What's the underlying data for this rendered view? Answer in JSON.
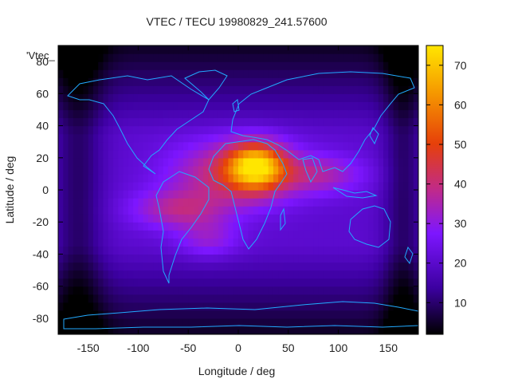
{
  "chart_data": {
    "type": "heatmap",
    "title": "VTEC / TECU 19980829_241.57600",
    "xlabel": "Longitude / deg",
    "ylabel": "Latitude / deg",
    "plot_key": "'Vtec_",
    "xlim": [
      -180,
      180
    ],
    "ylim": [
      -90,
      90
    ],
    "x_ticks": [
      -150,
      -100,
      -50,
      0,
      50,
      100,
      150
    ],
    "y_ticks": [
      -80,
      -60,
      -40,
      -20,
      0,
      20,
      40,
      60,
      80
    ],
    "colorbar": {
      "range": [
        2,
        75
      ],
      "ticks": [
        10,
        20,
        30,
        40,
        50,
        60,
        70
      ],
      "palette": [
        "#000000",
        "#3c00a0",
        "#7d16ff",
        "#c02a8a",
        "#e6400a",
        "#f69a00",
        "#ffe600"
      ]
    },
    "grid": false,
    "coastline_color": "#22aaff",
    "peak": {
      "lon": 18,
      "lat": 15,
      "value": 75
    },
    "features": [
      {
        "lon": 18,
        "lat": 15,
        "amp": 42,
        "sx": 28,
        "sy": 14
      },
      {
        "lon": -5,
        "lat": 10,
        "amp": 22,
        "sx": 60,
        "sy": 20
      },
      {
        "lon": -60,
        "lat": -12,
        "amp": 16,
        "sx": 45,
        "sy": 12
      },
      {
        "lon": 80,
        "lat": 10,
        "amp": 14,
        "sx": 45,
        "sy": 12
      },
      {
        "lon": -30,
        "lat": -30,
        "amp": 10,
        "sx": 30,
        "sy": 12
      }
    ],
    "background_value": 20
  }
}
